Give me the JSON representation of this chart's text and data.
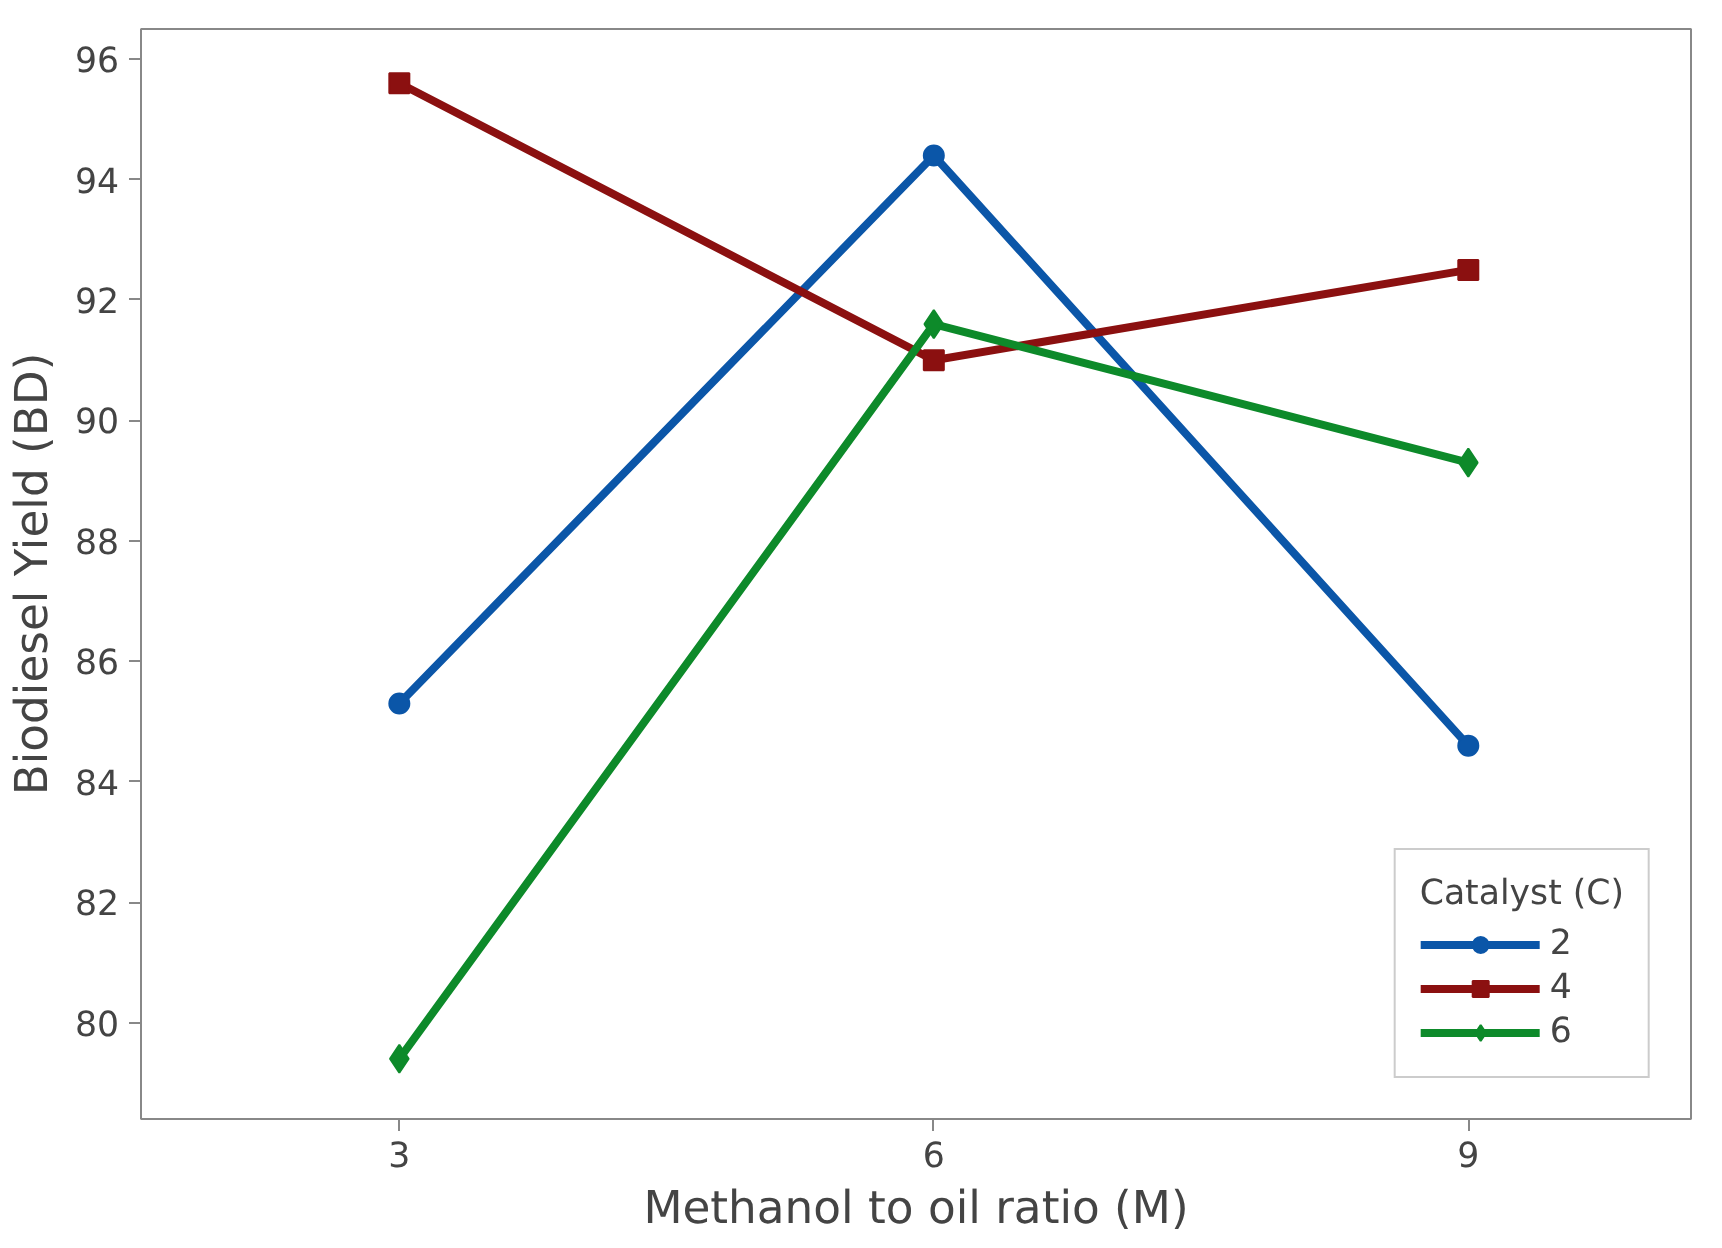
{
  "chart_data": {
    "type": "line",
    "xlabel": "Methanol to oil ratio (M)",
    "ylabel": "Biodiesel Yield (BD)",
    "legend_title": "Catalyst (C)",
    "x": [
      3,
      6,
      9
    ],
    "xlim": [
      1.55,
      10.25
    ],
    "ylim": [
      78.4,
      96.5
    ],
    "xticks": [
      3,
      6,
      9
    ],
    "yticks": [
      80,
      82,
      84,
      86,
      88,
      90,
      92,
      94,
      96
    ],
    "grid": false,
    "legend": "bottom right",
    "line_style": "solid",
    "series": [
      {
        "name": "2",
        "color": "#0b56a8",
        "marker": "circle",
        "values": [
          85.3,
          94.4,
          84.6
        ]
      },
      {
        "name": "4",
        "color": "#8b1010",
        "marker": "square",
        "values": [
          95.6,
          91.0,
          92.5
        ]
      },
      {
        "name": "6",
        "color": "#0d8a2a",
        "marker": "diamond",
        "values": [
          79.4,
          91.6,
          89.3
        ]
      }
    ]
  }
}
